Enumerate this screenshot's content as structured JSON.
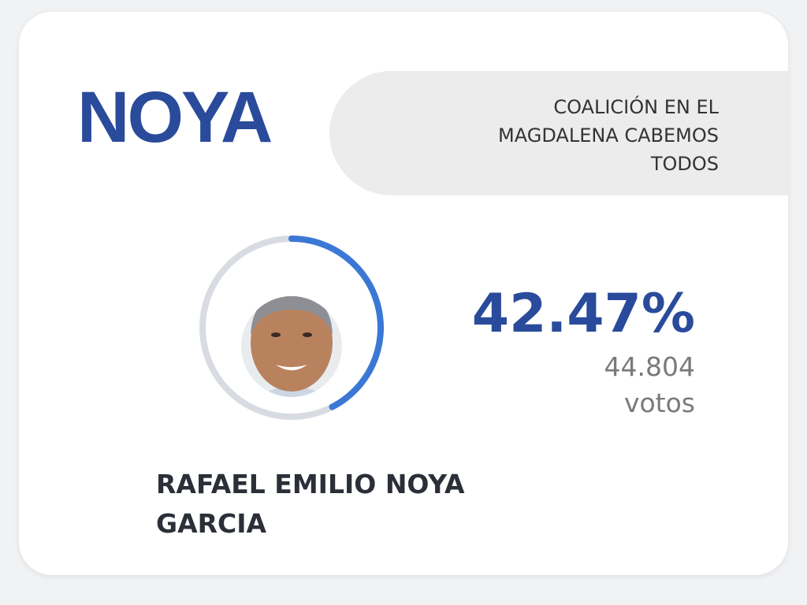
{
  "logo": "NOYA",
  "party": "COALICIÓN EN EL MAGDALENA CABEMOS TODOS",
  "result": {
    "percent": {
      "value": 42.47,
      "label": "42.47%"
    },
    "votes": "44.804",
    "votes_unit": "votos"
  },
  "candidate": {
    "name": "RAFAEL EMILIO NOYA GARCIA"
  }
}
